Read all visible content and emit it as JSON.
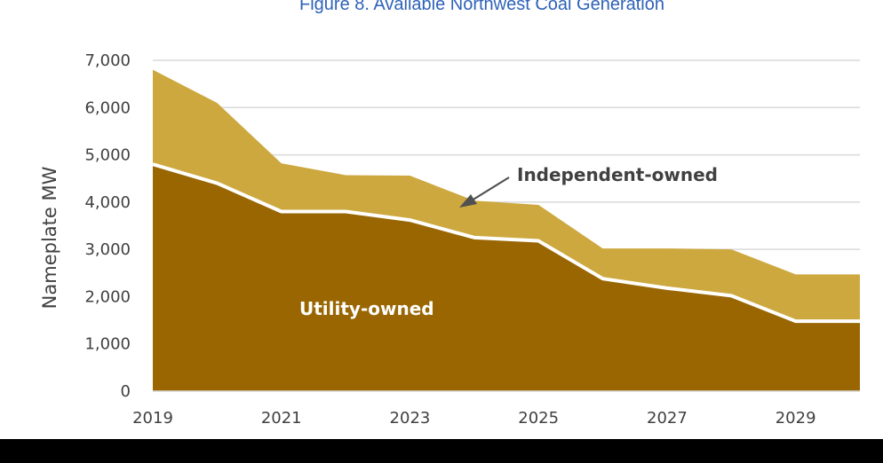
{
  "figure": {
    "title": "Figure 8.  Available Northwest Coal Generation"
  },
  "colors": {
    "utility": "#996602",
    "independent": "#CDA83F",
    "separator": "#ffffff",
    "grid": "#D9D9D9",
    "title": "#2E62B8",
    "text": "#404040",
    "arrow": "#505050"
  },
  "chart_data": {
    "type": "area",
    "stacked": true,
    "title": "Figure 8.  Available Northwest Coal Generation",
    "xlabel": "",
    "ylabel": "Nameplate MW",
    "xlim": [
      2019,
      2030
    ],
    "ylim": [
      0,
      7000
    ],
    "x_ticks": [
      "2019",
      "2021",
      "2023",
      "2025",
      "2027",
      "2029"
    ],
    "y_ticks": [
      "0",
      "1,000",
      "2,000",
      "3,000",
      "4,000",
      "5,000",
      "6,000",
      "7,000"
    ],
    "x": [
      2019,
      2020,
      2021,
      2022,
      2023,
      2024,
      2025,
      2026,
      2027,
      2028,
      2029,
      2030
    ],
    "series": [
      {
        "name": "Utility-owned",
        "values": [
          4800,
          4400,
          3800,
          3800,
          3620,
          3250,
          3180,
          2380,
          2180,
          2020,
          1480,
          1480
        ]
      },
      {
        "name": "Independent-owned",
        "values": [
          2000,
          1700,
          1020,
          770,
          940,
          780,
          760,
          640,
          840,
          980,
          990,
          990
        ]
      }
    ],
    "grid": true,
    "annotations": [
      {
        "text": "Independent-owned"
      },
      {
        "text": "Utility-owned"
      }
    ]
  }
}
